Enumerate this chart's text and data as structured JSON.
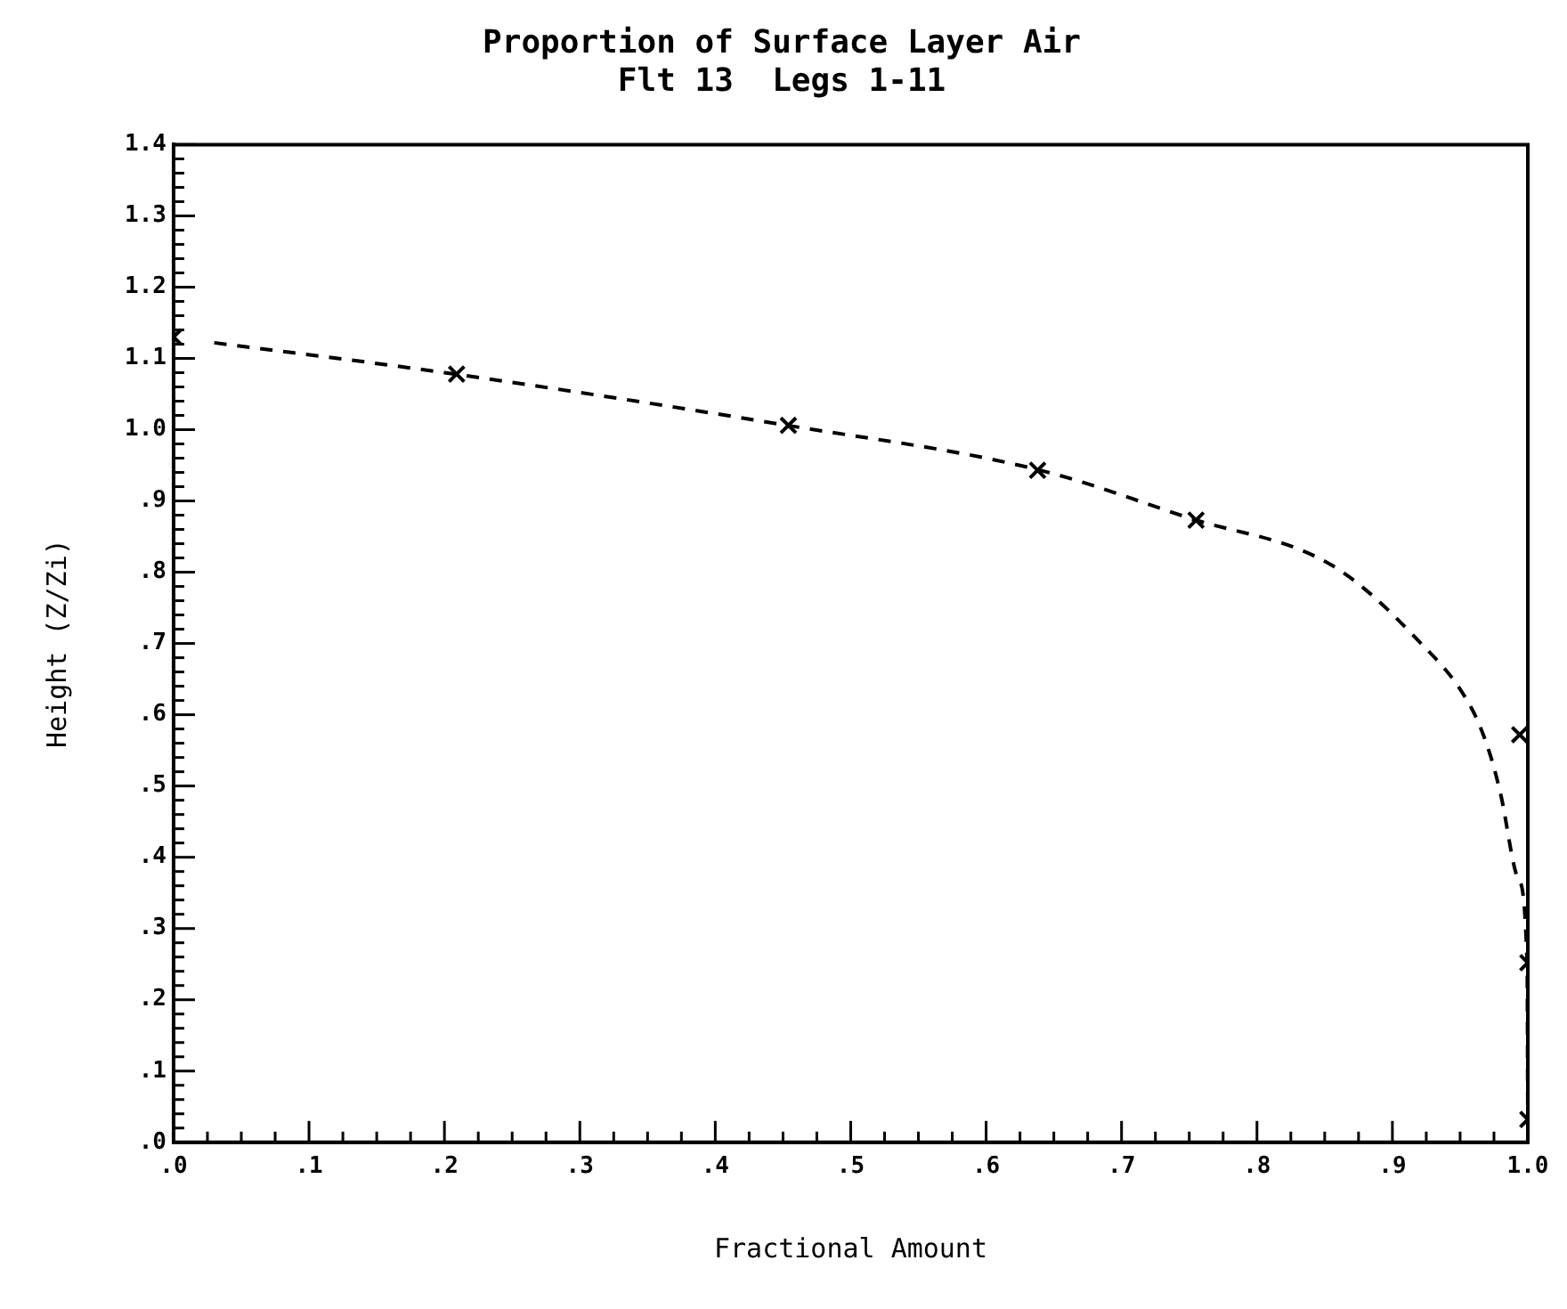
{
  "chart_data": {
    "type": "scatter",
    "title": "Proportion of Surface Layer Air\nFlt 13  Legs 1-11",
    "xlabel": "Fractional Amount",
    "ylabel": "Height (Z/Zi)",
    "xlim": [
      0,
      1
    ],
    "ylim": [
      0,
      1.4
    ],
    "xticks": [
      {
        "value": 0,
        "label": ".0"
      },
      {
        "value": 0.1,
        "label": ".1"
      },
      {
        "value": 0.2,
        "label": ".2"
      },
      {
        "value": 0.3,
        "label": ".3"
      },
      {
        "value": 0.4,
        "label": ".4"
      },
      {
        "value": 0.5,
        "label": ".5"
      },
      {
        "value": 0.6,
        "label": ".6"
      },
      {
        "value": 0.7,
        "label": ".7"
      },
      {
        "value": 0.8,
        "label": ".8"
      },
      {
        "value": 0.9,
        "label": ".9"
      },
      {
        "value": 1,
        "label": "1.0"
      },
      {
        "value": 0.025,
        "label": null
      },
      {
        "value": 0.05,
        "label": null
      },
      {
        "value": 0.075,
        "label": null
      },
      {
        "value": 0.125,
        "label": null
      },
      {
        "value": 0.15,
        "label": null
      },
      {
        "value": 0.175,
        "label": null
      },
      {
        "value": 0.225,
        "label": null
      },
      {
        "value": 0.25,
        "label": null
      },
      {
        "value": 0.275,
        "label": null
      },
      {
        "value": 0.325,
        "label": null
      },
      {
        "value": 0.35,
        "label": null
      },
      {
        "value": 0.375,
        "label": null
      },
      {
        "value": 0.425,
        "label": null
      },
      {
        "value": 0.45,
        "label": null
      },
      {
        "value": 0.475,
        "label": null
      },
      {
        "value": 0.525,
        "label": null
      },
      {
        "value": 0.55,
        "label": null
      },
      {
        "value": 0.575,
        "label": null
      },
      {
        "value": 0.625,
        "label": null
      },
      {
        "value": 0.65,
        "label": null
      },
      {
        "value": 0.675,
        "label": null
      },
      {
        "value": 0.725,
        "label": null
      },
      {
        "value": 0.75,
        "label": null
      },
      {
        "value": 0.775,
        "label": null
      },
      {
        "value": 0.825,
        "label": null
      },
      {
        "value": 0.85,
        "label": null
      },
      {
        "value": 0.875,
        "label": null
      },
      {
        "value": 0.925,
        "label": null
      },
      {
        "value": 0.95,
        "label": null
      },
      {
        "value": 0.975,
        "label": null
      }
    ],
    "yticks": [
      {
        "value": 0,
        "label": ".0"
      },
      {
        "value": 0.1,
        "label": ".1"
      },
      {
        "value": 0.2,
        "label": ".2"
      },
      {
        "value": 0.3,
        "label": ".3"
      },
      {
        "value": 0.4,
        "label": ".4"
      },
      {
        "value": 0.5,
        "label": ".5"
      },
      {
        "value": 0.6,
        "label": ".6"
      },
      {
        "value": 0.7,
        "label": ".7"
      },
      {
        "value": 0.8,
        "label": ".8"
      },
      {
        "value": 0.9,
        "label": ".9"
      },
      {
        "value": 1,
        "label": "1.0"
      },
      {
        "value": 1.1,
        "label": "1.1"
      },
      {
        "value": 1.2,
        "label": "1.2"
      },
      {
        "value": 1.3,
        "label": "1.3"
      },
      {
        "value": 1.4,
        "label": "1.4"
      },
      {
        "value": 0.02,
        "label": null
      },
      {
        "value": 0.04,
        "label": null
      },
      {
        "value": 0.06,
        "label": null
      },
      {
        "value": 0.08,
        "label": null
      },
      {
        "value": 0.12,
        "label": null
      },
      {
        "value": 0.14,
        "label": null
      },
      {
        "value": 0.16,
        "label": null
      },
      {
        "value": 0.18,
        "label": null
      },
      {
        "value": 0.22,
        "label": null
      },
      {
        "value": 0.24,
        "label": null
      },
      {
        "value": 0.26,
        "label": null
      },
      {
        "value": 0.28,
        "label": null
      },
      {
        "value": 0.32,
        "label": null
      },
      {
        "value": 0.34,
        "label": null
      },
      {
        "value": 0.36,
        "label": null
      },
      {
        "value": 0.38,
        "label": null
      },
      {
        "value": 0.42,
        "label": null
      },
      {
        "value": 0.44,
        "label": null
      },
      {
        "value": 0.46,
        "label": null
      },
      {
        "value": 0.48,
        "label": null
      },
      {
        "value": 0.52,
        "label": null
      },
      {
        "value": 0.54,
        "label": null
      },
      {
        "value": 0.56,
        "label": null
      },
      {
        "value": 0.58,
        "label": null
      },
      {
        "value": 0.62,
        "label": null
      },
      {
        "value": 0.64,
        "label": null
      },
      {
        "value": 0.66,
        "label": null
      },
      {
        "value": 0.68,
        "label": null
      },
      {
        "value": 0.72,
        "label": null
      },
      {
        "value": 0.74,
        "label": null
      },
      {
        "value": 0.76,
        "label": null
      },
      {
        "value": 0.78,
        "label": null
      },
      {
        "value": 0.82,
        "label": null
      },
      {
        "value": 0.84,
        "label": null
      },
      {
        "value": 0.86,
        "label": null
      },
      {
        "value": 0.88,
        "label": null
      },
      {
        "value": 0.92,
        "label": null
      },
      {
        "value": 0.94,
        "label": null
      },
      {
        "value": 0.96,
        "label": null
      },
      {
        "value": 0.98,
        "label": null
      },
      {
        "value": 1.02,
        "label": null
      },
      {
        "value": 1.04,
        "label": null
      },
      {
        "value": 1.06,
        "label": null
      },
      {
        "value": 1.08,
        "label": null
      },
      {
        "value": 1.12,
        "label": null
      },
      {
        "value": 1.14,
        "label": null
      },
      {
        "value": 1.16,
        "label": null
      },
      {
        "value": 1.18,
        "label": null
      },
      {
        "value": 1.22,
        "label": null
      },
      {
        "value": 1.24,
        "label": null
      },
      {
        "value": 1.26,
        "label": null
      },
      {
        "value": 1.28,
        "label": null
      },
      {
        "value": 1.32,
        "label": null
      },
      {
        "value": 1.34,
        "label": null
      },
      {
        "value": 1.36,
        "label": null
      },
      {
        "value": 1.38,
        "label": null
      }
    ],
    "grid": false,
    "legend": false,
    "series": [
      {
        "type": "scatter",
        "color": "#000000",
        "marker": "cross",
        "x": [
          0,
          0.209,
          0.454,
          0.638,
          0.755,
          0.994,
          1,
          1
        ],
        "values": [
          1.13,
          1.078,
          1.006,
          0.943,
          0.873,
          0.572,
          0.252,
          0.032
        ]
      },
      {
        "type": "line",
        "color": "#000000",
        "marker": "none",
        "line_style": "dashed",
        "x": [
          0.03,
          0.2,
          0.45,
          0.64,
          0.75,
          0.855,
          0.915,
          0.959,
          0.972,
          0.98,
          0.993,
          0.9995,
          1
        ],
        "values": [
          1.122,
          1.08,
          1.007,
          0.943,
          0.876,
          0.81,
          0.712,
          0.607,
          0.545,
          0.488,
          0.369,
          0.25,
          0.03
        ]
      }
    ]
  }
}
